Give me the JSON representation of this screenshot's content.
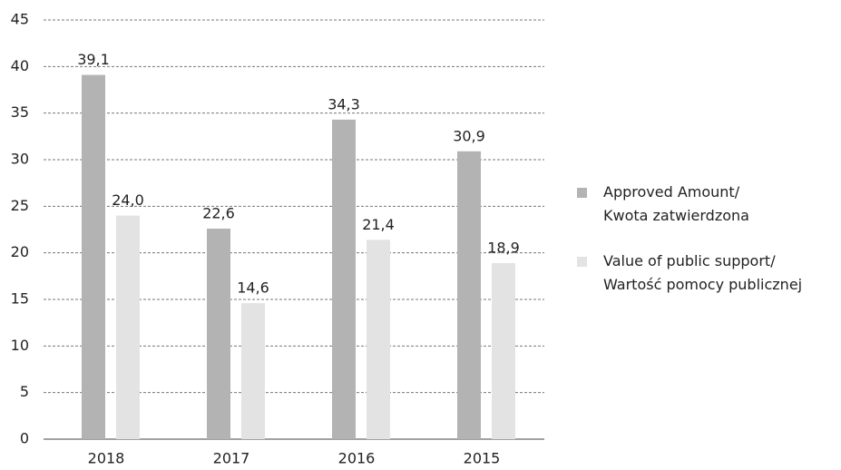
{
  "chart_data": {
    "type": "bar",
    "categories": [
      "2018",
      "2017",
      "2016",
      "2015"
    ],
    "series": [
      {
        "name": "Approved Amount/\nKwota zatwierdzona",
        "color": "#b3b3b3",
        "values": [
          39.1,
          22.6,
          34.3,
          30.9
        ],
        "value_labels": [
          "39,1",
          "22,6",
          "34,3",
          "30,9"
        ]
      },
      {
        "name": "Value of public support/\nWartość pomocy publicznej",
        "color": "#e3e3e3",
        "values": [
          24.0,
          14.6,
          21.4,
          18.9
        ],
        "value_labels": [
          "24,0",
          "14,6",
          "21,4",
          "18,9"
        ]
      }
    ],
    "ylim": [
      0,
      45
    ],
    "yticks": [
      0,
      5,
      10,
      15,
      20,
      25,
      30,
      35,
      40,
      45
    ],
    "grid": true,
    "legend": "right"
  }
}
